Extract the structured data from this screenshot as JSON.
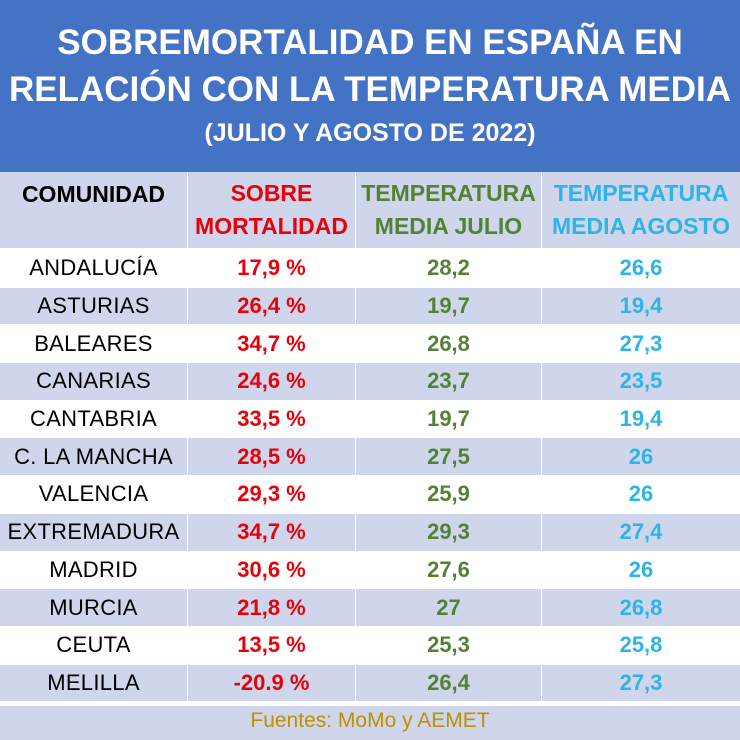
{
  "header": {
    "title_line1": "SOBREMORTALIDAD EN ESPAÑA EN",
    "title_line2": "RELACIÓN CON LA TEMPERATURA MEDIA",
    "subtitle": "(JULIO Y AGOSTO DE 2022)"
  },
  "columns": {
    "comunidad": "COMUNIDAD",
    "sobre_line1": "SOBRE",
    "sobre_line2": "MORTALIDAD",
    "julio_line1": "TEMPERATURA",
    "julio_line2": "MEDIA JULIO",
    "agosto_line1": "TEMPERATURA",
    "agosto_line2": "MEDIA AGOSTO"
  },
  "colors": {
    "header_bg": "#4472c4",
    "band": "#cfd5ea",
    "sobremortalidad": "#e8000b",
    "julio": "#548235",
    "agosto": "#2eb4e6",
    "footer_text": "#bf9000"
  },
  "chart_data": {
    "type": "table",
    "title": "SOBREMORTALIDAD EN ESPAÑA EN RELACIÓN CON LA TEMPERATURA MEDIA",
    "subtitle": "(JULIO Y AGOSTO DE 2022)",
    "rows": [
      {
        "comunidad": "ANDALUCÍA",
        "sobremortalidad": "17,9 %",
        "julio": "28,2",
        "agosto": "26,6"
      },
      {
        "comunidad": "ASTURIAS",
        "sobremortalidad": "26,4 %",
        "julio": "19,7",
        "agosto": "19,4"
      },
      {
        "comunidad": "BALEARES",
        "sobremortalidad": "34,7 %",
        "julio": "26,8",
        "agosto": "27,3"
      },
      {
        "comunidad": "CANARIAS",
        "sobremortalidad": "24,6 %",
        "julio": "23,7",
        "agosto": "23,5"
      },
      {
        "comunidad": "CANTABRIA",
        "sobremortalidad": "33,5 %",
        "julio": "19,7",
        "agosto": "19,4"
      },
      {
        "comunidad": "C. LA MANCHA",
        "sobremortalidad": "28,5 %",
        "julio": "27,5",
        "agosto": "26"
      },
      {
        "comunidad": "VALENCIA",
        "sobremortalidad": "29,3 %",
        "julio": "25,9",
        "agosto": "26"
      },
      {
        "comunidad": "EXTREMADURA",
        "sobremortalidad": "34,7 %",
        "julio": "29,3",
        "agosto": "27,4"
      },
      {
        "comunidad": "MADRID",
        "sobremortalidad": "30,6 %",
        "julio": "27,6",
        "agosto": "26"
      },
      {
        "comunidad": "MURCIA",
        "sobremortalidad": "21,8 %",
        "julio": "27",
        "agosto": "26,8"
      },
      {
        "comunidad": "CEUTA",
        "sobremortalidad": "13,5 %",
        "julio": "25,3",
        "agosto": "25,8"
      },
      {
        "comunidad": "MELILLA",
        "sobremortalidad": "-20.9 %",
        "julio": "26,4",
        "agosto": "27,3"
      }
    ]
  },
  "footer": {
    "sources": "Fuentes: MoMo y AEMET"
  }
}
